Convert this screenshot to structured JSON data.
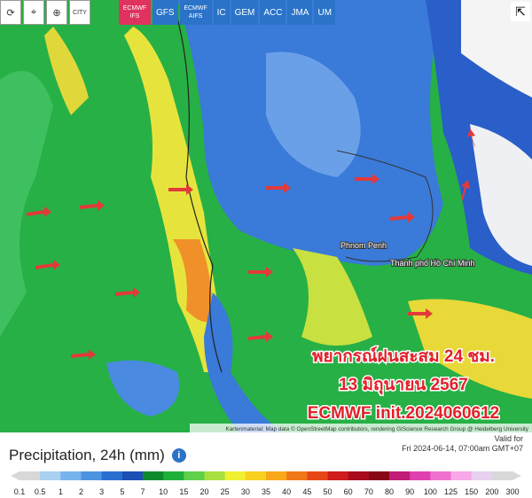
{
  "toolbar": {
    "city": "CITY",
    "models": [
      {
        "label": "ECMWF IFS",
        "active": true
      },
      {
        "label": "GFS",
        "active": false
      },
      {
        "label": "ECMWF AIFS",
        "active": false
      },
      {
        "label": "IC",
        "active": false
      },
      {
        "label": "GEM",
        "active": false
      },
      {
        "label": "ACC",
        "active": false
      },
      {
        "label": "JMA",
        "active": false
      },
      {
        "label": "UM",
        "active": false
      }
    ]
  },
  "map": {
    "places": [
      "Phnom Penh",
      "Thành phố Hồ Chí Minh"
    ],
    "overlay": [
      "พยากรณ์ฝนสะสม 24 ชม.",
      "13 มิถุนายน 2567",
      "ECMWF init.2024060612"
    ],
    "attribution": "Kartenmaterial: Map data © OpenStreetMap contributors, rendering GIScience Research Group @ Heidelberg University"
  },
  "legend": {
    "title": "Precipitation, 24h (mm)",
    "valid_label": "Valid for",
    "valid_time": "Fri 2024-06-14, 07:00am GMT+07",
    "ticks": [
      0.1,
      0.5,
      1,
      2,
      3,
      5,
      7,
      10,
      15,
      20,
      25,
      30,
      35,
      40,
      45,
      50,
      60,
      70,
      80,
      90,
      100,
      125,
      150,
      200,
      300
    ],
    "colors": [
      "#d8d8d8",
      "#a8d0f0",
      "#78b4ec",
      "#4c94e0",
      "#2a6fd0",
      "#1c4fb4",
      "#0e8a2c",
      "#1fb03a",
      "#5ed04a",
      "#a8e040",
      "#f0f030",
      "#f8d020",
      "#f8a818",
      "#f07818",
      "#e84818",
      "#d01c1c",
      "#a80c1c",
      "#880818",
      "#c01c78",
      "#e040b0",
      "#f070d0",
      "#f8a8e8",
      "#e8d0f0",
      "#d8d8d8"
    ]
  }
}
